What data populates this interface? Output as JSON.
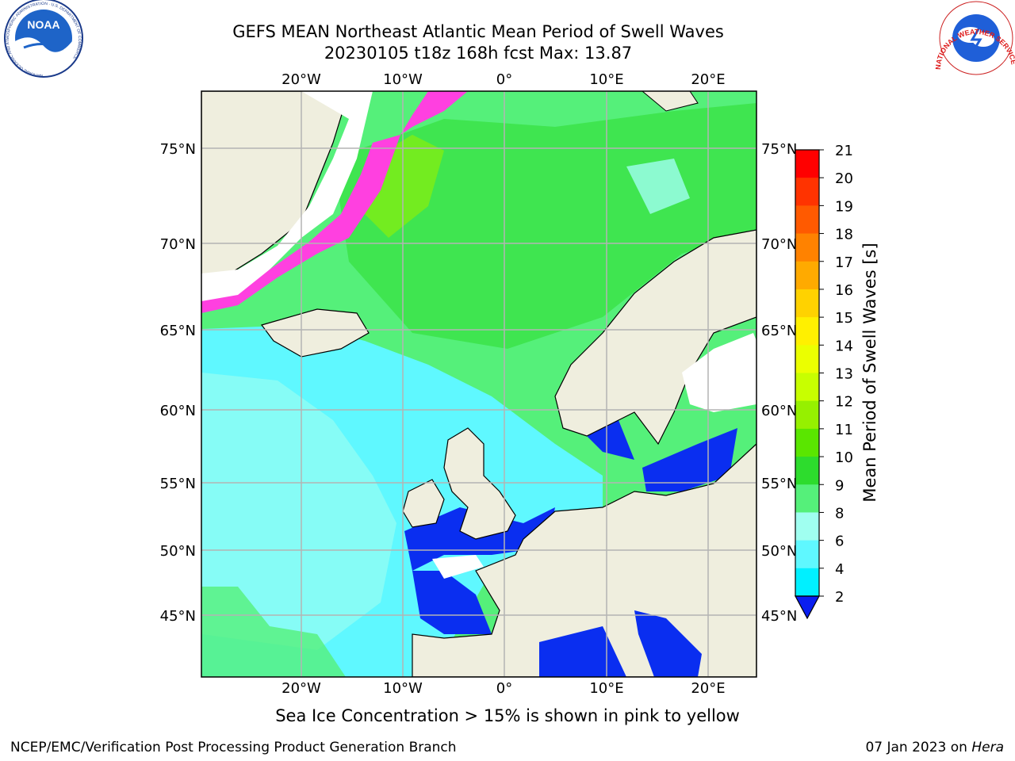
{
  "title": {
    "line1": "GEFS MEAN Northeast Atlantic Mean Period of Swell Waves",
    "line2": "20230105 t18z 168h fcst   Max: 13.87"
  },
  "map": {
    "lon_labels": [
      "20°W",
      "10°W",
      "0°",
      "10°E",
      "20°E"
    ],
    "lat_labels": [
      "75°N",
      "70°N",
      "65°N",
      "60°N",
      "55°N",
      "50°N",
      "45°N"
    ],
    "colors": {
      "land": "#efeede",
      "ocean_green": "#55f07a",
      "ocean_bright_green": "#2ddc2d",
      "ocean_cyan": "#5ff8ff",
      "ocean_light_cyan": "#a0fff0",
      "ocean_blue": "#0a2ef0",
      "sea_ice": "#ff40e0",
      "sea_ice_edge": "#ffd040",
      "grid": "#b4b4b4"
    }
  },
  "colorbar": {
    "label": "Mean Period of Swell Waves [s]",
    "ticks": [
      "21",
      "20",
      "19",
      "18",
      "17",
      "16",
      "15",
      "14",
      "13",
      "12",
      "11",
      "10",
      "9",
      "8",
      "6",
      "4",
      "2"
    ],
    "colors": [
      "#ff0000",
      "#ff3300",
      "#ff5a00",
      "#ff8200",
      "#ffaa00",
      "#ffd200",
      "#fff000",
      "#ebff00",
      "#c8ff00",
      "#96f000",
      "#5ae600",
      "#2ddc2d",
      "#55f07a",
      "#a0fff0",
      "#5ff8ff",
      "#00f0ff",
      "#0064ff"
    ],
    "underflow_color": "#0a1ef0"
  },
  "footer": {
    "note": "Sea Ice Concentration > 15% is shown in pink to yellow",
    "credit": "NCEP/EMC/Verification Post Processing Product Generation Branch",
    "date": "07 Jan 2023 on",
    "system": "Hera"
  },
  "logos": {
    "noaa_text": "NOAA",
    "noaa_ring": "NATIONAL OCEANIC AND ATMOSPHERIC ADMINISTRATION · U.S. DEPARTMENT OF COMMERCE",
    "nws_ring": "NATIONAL WEATHER SERVICE"
  }
}
